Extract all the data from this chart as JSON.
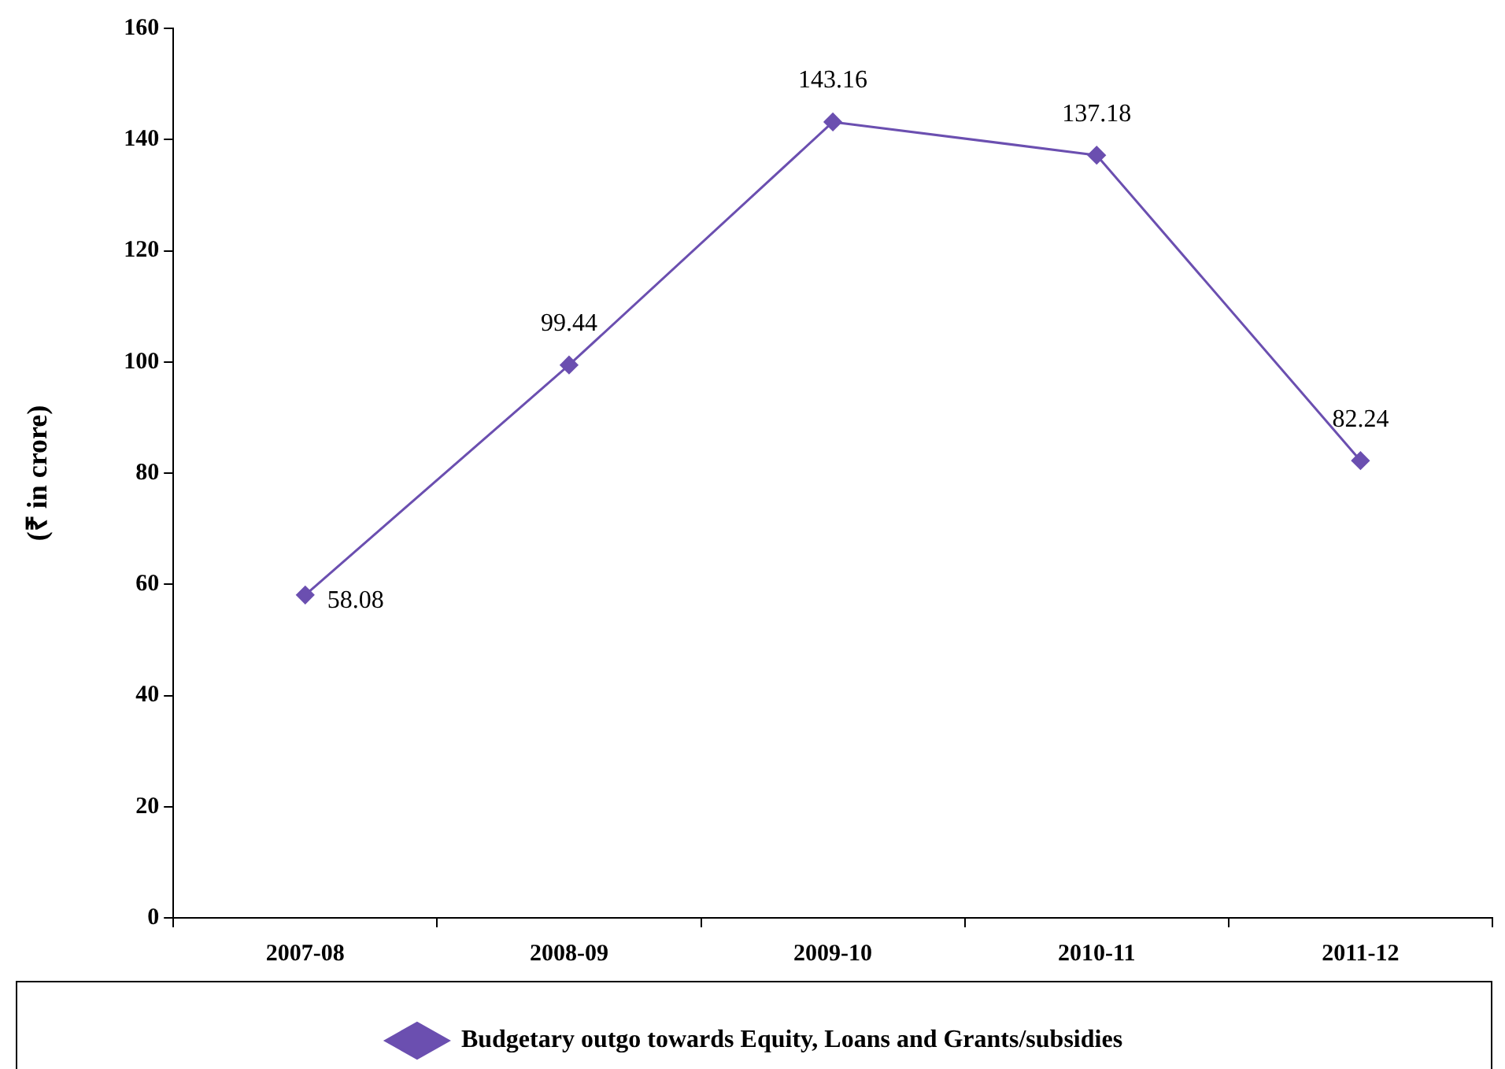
{
  "chart_data": {
    "type": "line",
    "ylabel": "(₹ in crore)",
    "categories": [
      "2007-08",
      "2008-09",
      "2009-10",
      "2010-11",
      "2011-12"
    ],
    "series": [
      {
        "name": "Budgetary outgo towards Equity, Loans and Grants/subsidies",
        "color": "#6b4fb0",
        "values": [
          58.08,
          99.44,
          143.16,
          137.18,
          82.24
        ]
      }
    ],
    "ylim": [
      0,
      160
    ],
    "yticks": [
      0,
      20,
      40,
      60,
      80,
      100,
      120,
      140,
      160
    ],
    "data_labels": true,
    "marker": "diamond",
    "line_style": "solid",
    "legend": "bottom"
  }
}
